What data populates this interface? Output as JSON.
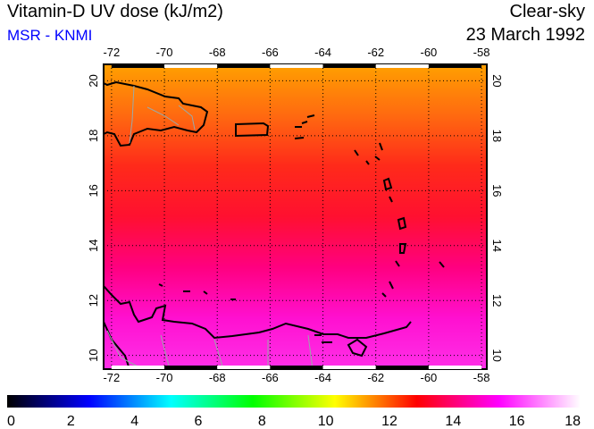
{
  "header": {
    "title": "Vitamin-D UV dose (kJ/m2)",
    "subtitle": "MSR - KNMI",
    "mode": "Clear-sky",
    "date": "23 March 1992"
  },
  "map": {
    "lon_range": [
      -72.3,
      -57.8
    ],
    "lat_range": [
      9.5,
      20.6
    ],
    "lon_ticks": [
      "-72",
      "-70",
      "-68",
      "-66",
      "-64",
      "-62",
      "-60",
      "-58"
    ],
    "lat_ticks": [
      "10",
      "12",
      "14",
      "16",
      "18",
      "20"
    ],
    "field_colors": [
      "#ffa000",
      "#ff6a10",
      "#ff2a1a",
      "#ff1030",
      "#ff0080",
      "#ff10d0",
      "#ff30e8"
    ]
  },
  "colorbar": {
    "min": 0,
    "max": 18,
    "labels": [
      "0",
      "2",
      "4",
      "6",
      "8",
      "10",
      "12",
      "14",
      "16",
      "18"
    ],
    "colors": [
      "#000000",
      "#000080",
      "#0000ff",
      "#0080ff",
      "#00ffff",
      "#00ff80",
      "#00ff00",
      "#80ff00",
      "#ffff00",
      "#ff8000",
      "#ff0000",
      "#ff0080",
      "#ff00ff",
      "#ff80ff",
      "#ffffff"
    ]
  }
}
